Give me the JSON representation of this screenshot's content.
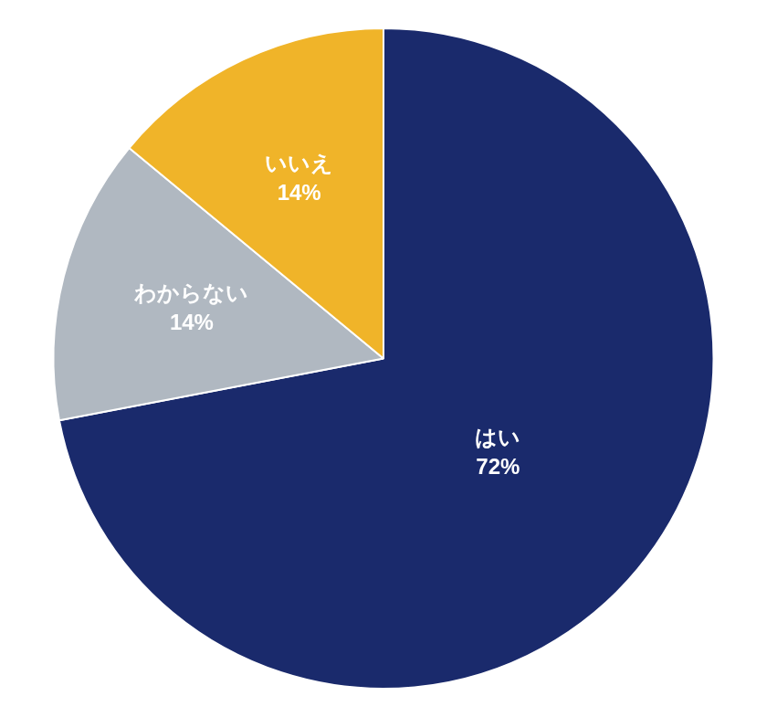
{
  "chart_data": {
    "type": "pie",
    "categories": [
      "はい",
      "わからない",
      "いいえ"
    ],
    "values": [
      72,
      14,
      14
    ],
    "value_labels": [
      "72%",
      "14%",
      "14%"
    ],
    "colors": [
      "#1a2a6c",
      "#b0b8c1",
      "#f0b429"
    ],
    "data_labels": true
  }
}
